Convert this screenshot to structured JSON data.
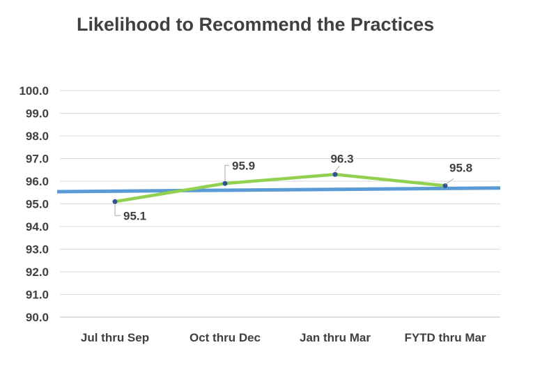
{
  "chart_data": {
    "type": "line",
    "title": "Likelihood to Recommend the Practices",
    "xlabel": "",
    "ylabel": "",
    "categories": [
      "Jul thru Sep",
      "Oct thru Dec",
      "Jan thru Mar",
      "FYTD thru Mar"
    ],
    "series": [
      {
        "values": [
          95.1,
          95.9,
          96.3,
          95.8
        ],
        "data_labels": [
          "95.1",
          "95.9",
          "96.3",
          "95.8"
        ],
        "color": "#92d050",
        "marker_color": "#2f5597"
      },
      {
        "values": [
          95.56,
          95.6,
          95.64,
          95.68
        ],
        "style": "trend",
        "color": "#5b9bd5"
      }
    ],
    "y_ticks": [
      "100.0",
      "99.0",
      "98.0",
      "97.0",
      "96.0",
      "95.0",
      "94.0",
      "93.0",
      "92.0",
      "91.0",
      "90.0"
    ],
    "ylim": [
      90,
      100
    ],
    "grid": true,
    "legend": "none"
  }
}
